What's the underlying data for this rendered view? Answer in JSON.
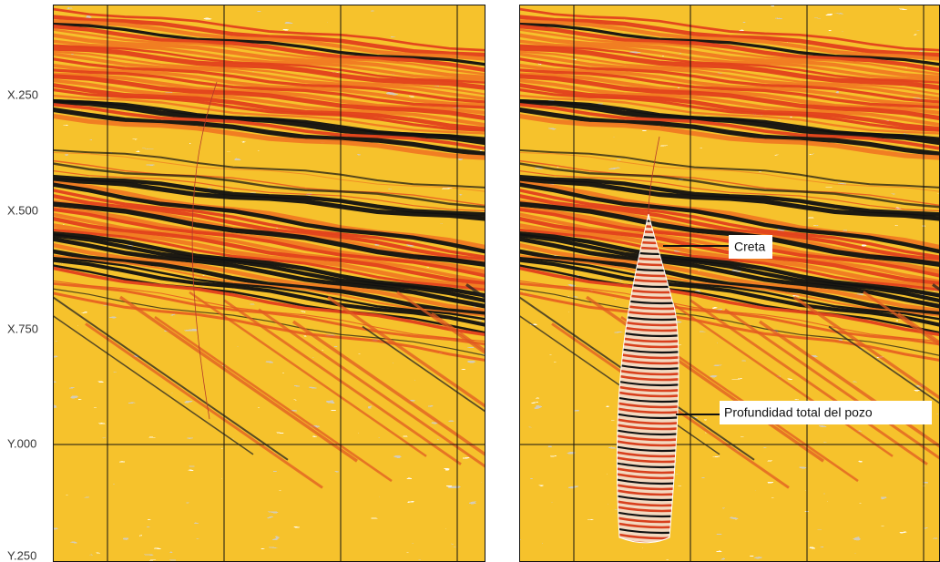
{
  "axis": {
    "labels": [
      "X.250",
      "X.500",
      "X.750",
      "Y.000",
      "Y.250"
    ]
  },
  "annotations": [
    "Creta",
    "Profundidad total del pozo"
  ]
}
